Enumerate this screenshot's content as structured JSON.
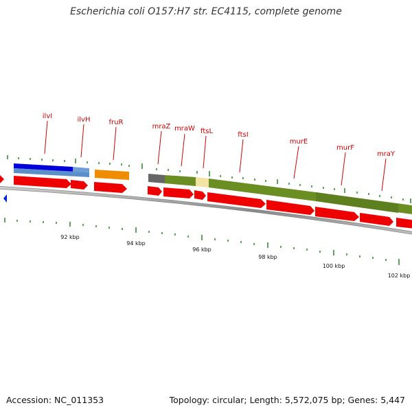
{
  "header": {
    "title": "Escherichia coli O157:H7 str. EC4115, complete genome"
  },
  "footer": {
    "accession": "Accession: NC_011353",
    "summary": "Topology: circular; Length: 5,572,075 bp; Genes: 5,447"
  },
  "colors": {
    "gene_label": "#cc0000",
    "cds_arrow": "#ee0000",
    "tick": "#1a7a1a",
    "backbone": "#888888",
    "feature_blue": "#0000dd",
    "feature_steelblue": "#5b8fc9",
    "feature_orange": "#f08c00",
    "feature_olive": "#6b8e23",
    "feature_gray": "#666666",
    "feature_pale": "#f5e6a8"
  },
  "map": {
    "gene_labels": [
      {
        "name": "ilvI"
      },
      {
        "name": "ilvH"
      },
      {
        "name": "fruR"
      },
      {
        "name": "mraZ"
      },
      {
        "name": "mraW"
      },
      {
        "name": "ftsL"
      },
      {
        "name": "ftsI"
      },
      {
        "name": "murE"
      },
      {
        "name": "murF"
      },
      {
        "name": "mraY"
      }
    ],
    "kbp_labels": [
      "92 kbp",
      "94 kbp",
      "96 kbp",
      "98 kbp",
      "100 kbp",
      "102 kbp"
    ]
  }
}
